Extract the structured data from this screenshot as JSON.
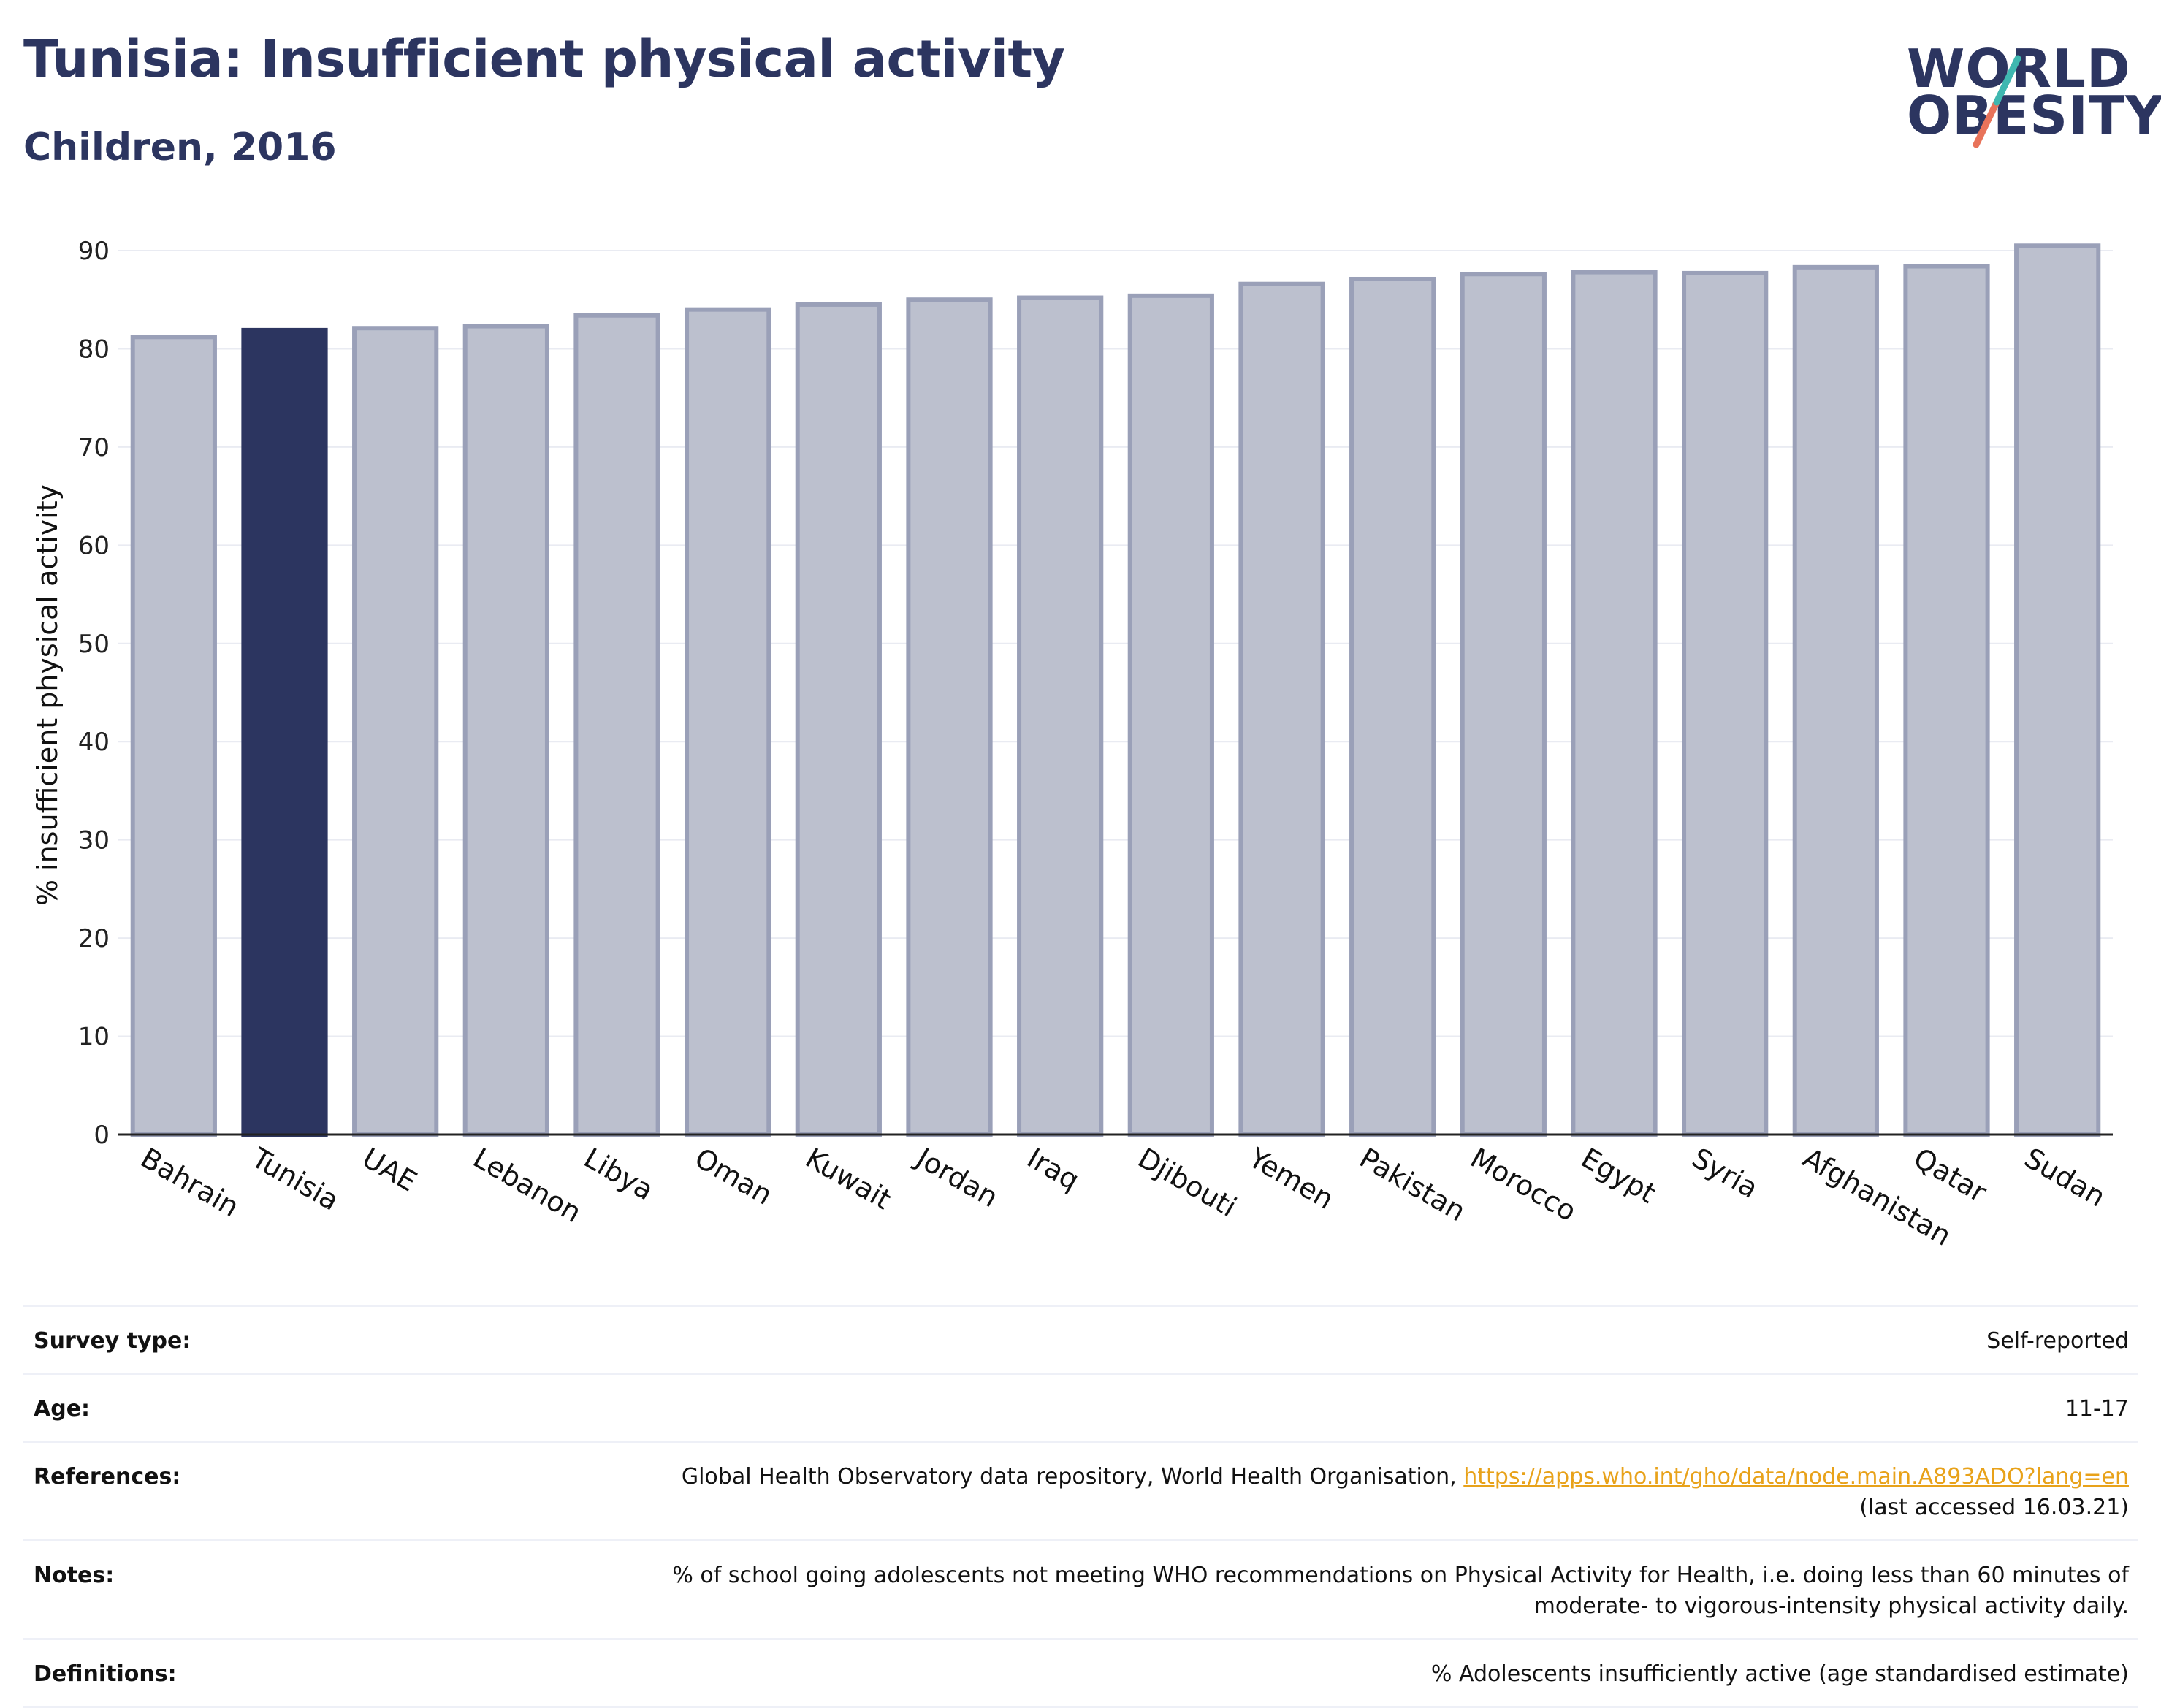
{
  "header": {
    "title": "Tunisia: Insufficient physical activity",
    "subtitle": "Children, 2016"
  },
  "logo": {
    "line1": "WORLD",
    "line2": "OBESITY"
  },
  "colors": {
    "highlight": "#2c3560",
    "bar": "#bcc0ce",
    "bar_border": "#9aa0b8",
    "accent": "#e8a21a"
  },
  "chart_data": {
    "type": "bar",
    "ylabel": "% insufficient physical activity",
    "ylim": [
      0,
      90
    ],
    "yticks": [
      0,
      10,
      20,
      30,
      40,
      50,
      60,
      70,
      80,
      90
    ],
    "grid": true,
    "highlight": "Tunisia",
    "categories": [
      "Bahrain",
      "Tunisia",
      "UAE",
      "Lebanon",
      "Libya",
      "Oman",
      "Kuwait",
      "Jordan",
      "Iraq",
      "Djibouti",
      "Yemen",
      "Pakistan",
      "Morocco",
      "Egypt",
      "Syria",
      "Afghanistan",
      "Qatar",
      "Sudan"
    ],
    "values": [
      81.2,
      81.9,
      82.1,
      82.3,
      83.4,
      84.0,
      84.5,
      85.0,
      85.2,
      85.4,
      86.6,
      87.1,
      87.6,
      87.8,
      87.7,
      88.3,
      88.4,
      90.5
    ]
  },
  "info": {
    "survey_label": "Survey type:",
    "survey_value": "Self-reported",
    "age_label": "Age:",
    "age_value": "11-17",
    "ref_label": "References:",
    "ref_text": "Global Health Observatory data repository, World Health Organisation, ",
    "ref_link": "https://apps.who.int/gho/data/node.main.A893ADO?lang=en",
    "ref_accessed": "(last accessed 16.03.21)",
    "notes_label": "Notes:",
    "notes_line1": "% of school going adolescents not meeting WHO recommendations on Physical Activity for Health, i.e. doing less than 60 minutes of",
    "notes_line2": "moderate- to vigorous-intensity physical activity daily.",
    "def_label": "Definitions:",
    "def_value": "% Adolescents insufficiently active (age standardised estimate)"
  }
}
